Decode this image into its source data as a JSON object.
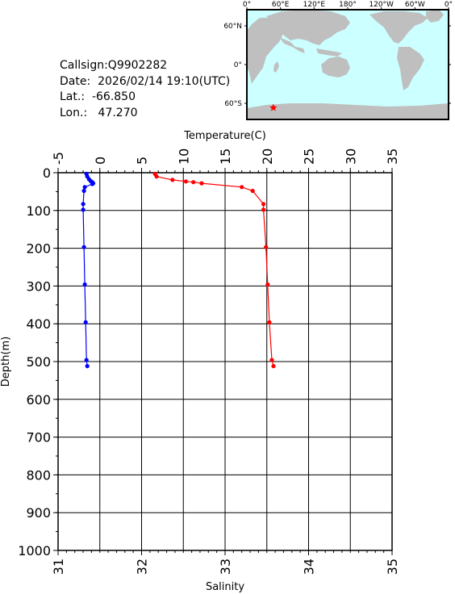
{
  "station": {
    "callsign_label": "Callsign:",
    "callsign": "Q9902282",
    "date_label": "Date:",
    "date": "2026/02/14 19:10(UTC)",
    "lat_label": "Lat.:",
    "lat": "-66.850",
    "lon_label": "Lon.:",
    "lon": "47.270"
  },
  "map": {
    "top_labels": [
      "0°",
      "60°E",
      "120°E",
      "180°",
      "120°W",
      "60°W",
      "0°"
    ],
    "left_labels": [
      "60°N",
      "0°",
      "60°S"
    ],
    "ocean_color": "#ccffff",
    "land_color": "#bfbfbf",
    "marker": {
      "symbol": "star",
      "color": "#ff0000",
      "lon": 47.27,
      "lat": -66.85
    }
  },
  "chart_data": {
    "type": "line",
    "title": "",
    "y_axis": {
      "label": "Depth(m)",
      "range": [
        0,
        1000
      ],
      "inverted": true,
      "ticks": [
        0,
        100,
        200,
        300,
        400,
        500,
        600,
        700,
        800,
        900,
        1000
      ]
    },
    "x_axis_top": {
      "label": "Temperature(C)",
      "range": [
        -5,
        35
      ],
      "ticks": [
        -5,
        0,
        5,
        10,
        15,
        20,
        25,
        30,
        35
      ]
    },
    "x_axis_bottom": {
      "label": "Salinity",
      "range": [
        31,
        35
      ],
      "ticks": [
        31,
        32,
        33,
        34,
        35
      ]
    },
    "grid": true,
    "series": [
      {
        "axis": "temperature",
        "color": "#ff0000",
        "depth": [
          3,
          10,
          19,
          23,
          25,
          28,
          38,
          48,
          83,
          98,
          197,
          296,
          396,
          496,
          512
        ],
        "values": [
          6.6,
          6.8,
          8.7,
          10.3,
          11.2,
          12.2,
          17.0,
          18.3,
          19.6,
          19.6,
          19.9,
          20.1,
          20.3,
          20.6,
          20.8
        ]
      },
      {
        "axis": "salinity",
        "color": "#0000ff",
        "depth": [
          3,
          10,
          17,
          22,
          25,
          28,
          30,
          38,
          48,
          83,
          98,
          197,
          296,
          396,
          496,
          512
        ],
        "values": [
          31.34,
          31.35,
          31.37,
          31.39,
          31.41,
          31.42,
          31.41,
          31.32,
          31.31,
          31.3,
          31.3,
          31.31,
          31.32,
          31.33,
          31.34,
          31.35
        ]
      }
    ]
  }
}
